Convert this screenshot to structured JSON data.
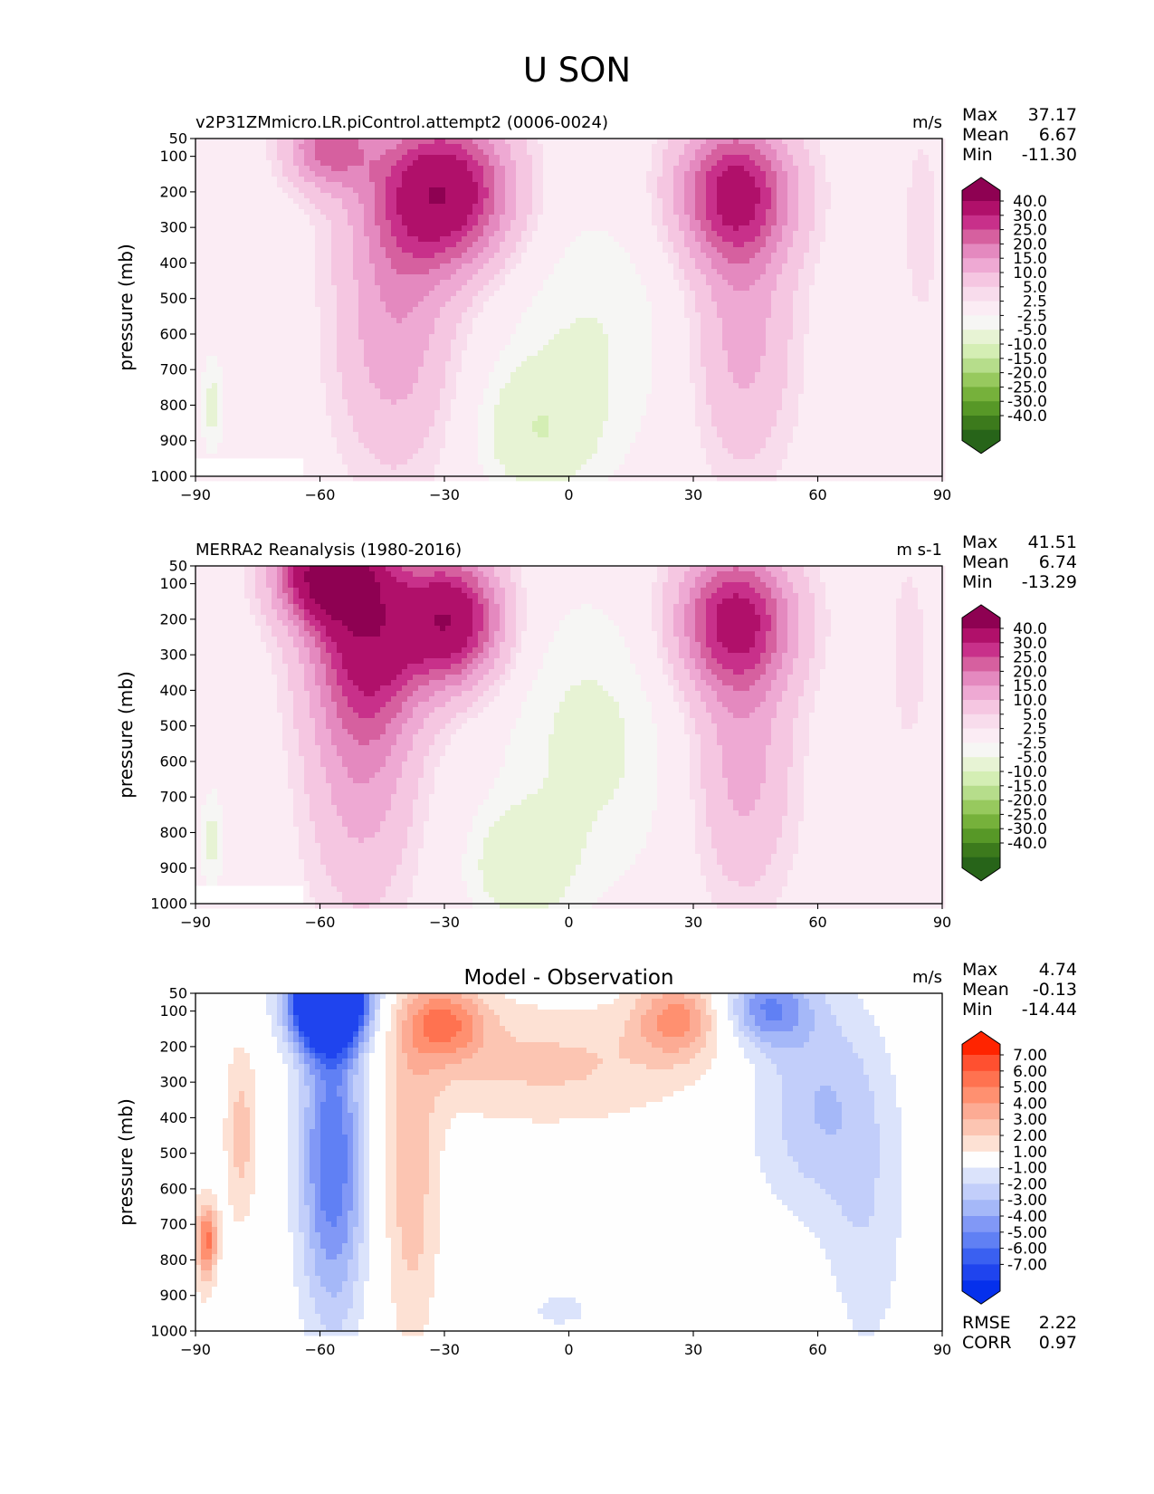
{
  "figure": {
    "title": "U SON"
  },
  "chart_data": [
    {
      "type": "heatmap",
      "panel": "model",
      "title": "v2P31ZMmicro.LR.piControl.attempt2 (0006-0024)",
      "units": "m/s",
      "xlabel": "",
      "ylabel": "pressure (mb)",
      "xlim": [
        -90,
        90
      ],
      "ylim": [
        1000,
        50
      ],
      "xticks": [
        "−90",
        "−60",
        "−30",
        "0",
        "30",
        "60",
        "90"
      ],
      "yticks": [
        "50",
        "100",
        "200",
        "300",
        "400",
        "500",
        "600",
        "700",
        "800",
        "900",
        "1000"
      ],
      "stats": [
        {
          "label": "Max",
          "value": "37.17"
        },
        {
          "label": "Mean",
          "value": "6.67"
        },
        {
          "label": "Min",
          "value": "-11.30"
        }
      ],
      "colorbar": {
        "labels": [
          "40.0",
          "30.0",
          "25.0",
          "20.0",
          "15.0",
          "10.0",
          "5.0",
          "2.5",
          "-2.5",
          "-5.0",
          "-10.0",
          "-15.0",
          "-20.0",
          "-25.0",
          "-30.0",
          "-40.0"
        ],
        "colors": [
          "#8e0152",
          "#b0106a",
          "#c8308a",
          "#d6609f",
          "#e489bf",
          "#eea9d3",
          "#f5c6e1",
          "#f8dcec",
          "#fbecf4",
          "#f6f6f4",
          "#e7f3d4",
          "#d4eeb4",
          "#b6dd8b",
          "#97c95e",
          "#76b13b",
          "#579827",
          "#3c7a1c",
          "#276419"
        ]
      },
      "jets": [
        {
          "lat": -30,
          "p": 200,
          "peak": 37.0
        },
        {
          "lat": 40,
          "p": 200,
          "peak": 31.0
        }
      ]
    },
    {
      "type": "heatmap",
      "panel": "observation",
      "title": "MERRA2 Reanalysis (1980-2016)",
      "units": "m s-1",
      "xlabel": "",
      "ylabel": "pressure (mb)",
      "xlim": [
        -90,
        90
      ],
      "ylim": [
        1000,
        50
      ],
      "xticks": [
        "−90",
        "−60",
        "−30",
        "0",
        "30",
        "60",
        "90"
      ],
      "yticks": [
        "50",
        "100",
        "200",
        "300",
        "400",
        "500",
        "600",
        "700",
        "800",
        "900",
        "1000"
      ],
      "stats": [
        {
          "label": "Max",
          "value": "41.51"
        },
        {
          "label": "Mean",
          "value": "6.74"
        },
        {
          "label": "Min",
          "value": "-13.29"
        }
      ],
      "colorbar": {
        "labels": [
          "40.0",
          "30.0",
          "25.0",
          "20.0",
          "15.0",
          "10.0",
          "5.0",
          "2.5",
          "-2.5",
          "-5.0",
          "-10.0",
          "-15.0",
          "-20.0",
          "-25.0",
          "-30.0",
          "-40.0"
        ],
        "colors": [
          "#8e0152",
          "#b0106a",
          "#c8308a",
          "#d6609f",
          "#e489bf",
          "#eea9d3",
          "#f5c6e1",
          "#f8dcec",
          "#fbecf4",
          "#f6f6f4",
          "#e7f3d4",
          "#d4eeb4",
          "#b6dd8b",
          "#97c95e",
          "#76b13b",
          "#579827",
          "#3c7a1c",
          "#276419"
        ]
      },
      "jets": [
        {
          "lat": -58,
          "p": 70,
          "peak": 41.0
        },
        {
          "lat": -28,
          "p": 200,
          "peak": 36.0
        },
        {
          "lat": 40,
          "p": 200,
          "peak": 31.0
        }
      ]
    },
    {
      "type": "heatmap",
      "panel": "difference",
      "title": "Model - Observation",
      "units": "m/s",
      "xlabel": "",
      "ylabel": "pressure (mb)",
      "xlim": [
        -90,
        90
      ],
      "ylim": [
        1000,
        50
      ],
      "xticks": [
        "−90",
        "−60",
        "−30",
        "0",
        "30",
        "60",
        "90"
      ],
      "yticks": [
        "50",
        "100",
        "200",
        "300",
        "400",
        "500",
        "600",
        "700",
        "800",
        "900",
        "1000"
      ],
      "stats": [
        {
          "label": "Max",
          "value": "4.74"
        },
        {
          "label": "Mean",
          "value": "-0.13"
        },
        {
          "label": "Min",
          "value": "-14.44"
        }
      ],
      "extra_stats": [
        {
          "label": "RMSE",
          "value": "2.22"
        },
        {
          "label": "CORR",
          "value": "0.97"
        }
      ],
      "colorbar": {
        "labels": [
          "7.00",
          "6.00",
          "5.00",
          "4.00",
          "3.00",
          "2.00",
          "1.00",
          "-1.00",
          "-2.00",
          "-3.00",
          "-4.00",
          "-5.00",
          "-6.00",
          "-7.00"
        ],
        "colors": [
          "#ff2400",
          "#ff5030",
          "#ff7250",
          "#ff9070",
          "#fcab94",
          "#fcc5b2",
          "#fde1d4",
          "#fefefe",
          "#dbe3fb",
          "#c2cefa",
          "#a5b8f8",
          "#8198f6",
          "#6080f4",
          "#3a60f1",
          "#1f44ee",
          "#0530ec"
        ]
      }
    }
  ]
}
